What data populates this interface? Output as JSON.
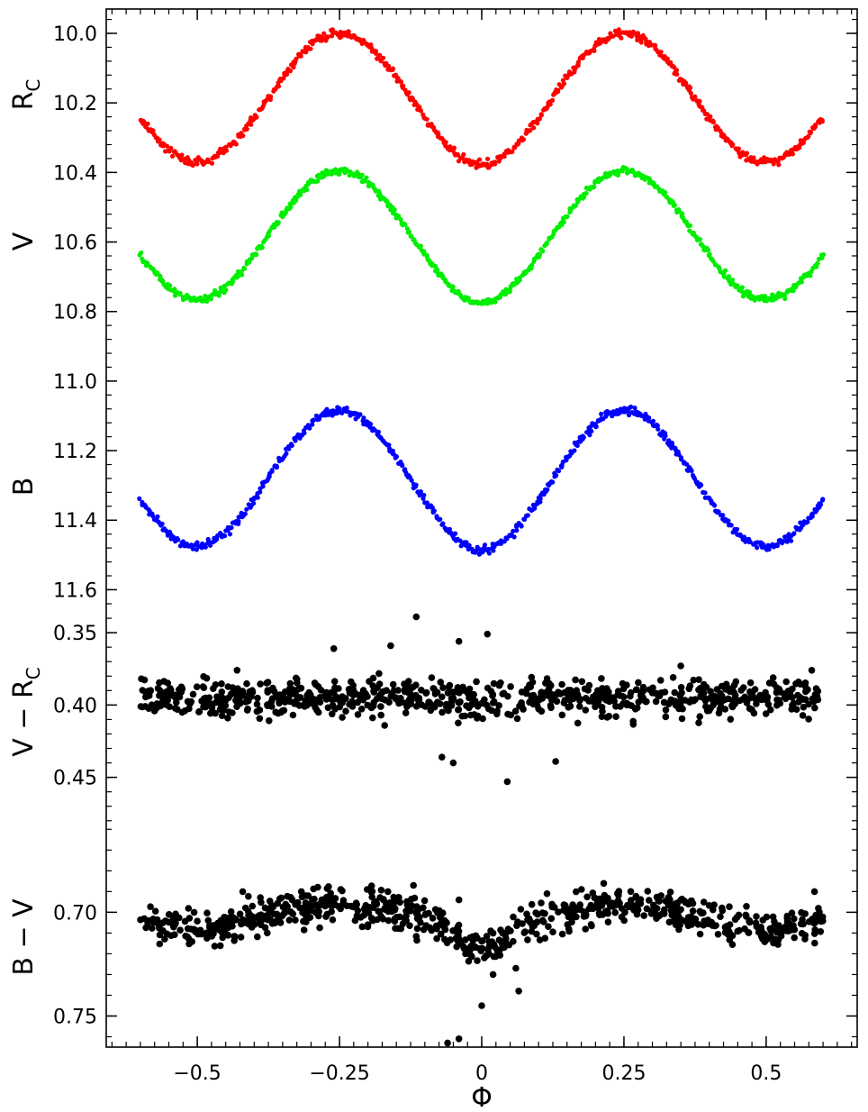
{
  "chart_data": {
    "type": "scatter",
    "x_axis": {
      "label": "Φ",
      "range": [
        -0.66,
        0.66
      ],
      "ticks": [
        -0.5,
        -0.25,
        0,
        0.25,
        0.5
      ],
      "tick_labels": [
        "−0.5",
        "−0.25",
        "0",
        "0.25",
        "0.5"
      ]
    },
    "panels": [
      {
        "id": "mag",
        "y_range": [
          9.93,
          11.63
        ],
        "y_inverted": true,
        "ticks": [
          10.0,
          10.2,
          10.4,
          10.6,
          10.8,
          11.0,
          11.2,
          11.4,
          11.6
        ],
        "tick_labels": [
          "10.0",
          "10.2",
          "10.4",
          "10.6",
          "10.8",
          "11.0",
          "11.2",
          "11.4",
          "11.6"
        ],
        "series": [
          {
            "name": "R_C",
            "label_main": "R",
            "label_sub": "C",
            "color": "#ff0000",
            "min_mag": 10.0,
            "max_mag": 10.37,
            "min_phase0": 10.41,
            "scatter": 0.012
          },
          {
            "name": "V",
            "label_main": "V",
            "label_sub": "",
            "color": "#00ee00",
            "min_mag": 10.395,
            "max_mag": 10.765,
            "min_phase0": 10.815,
            "scatter": 0.01
          },
          {
            "name": "B",
            "label_main": "B",
            "label_sub": "",
            "color": "#0000ff",
            "min_mag": 11.085,
            "max_mag": 11.475,
            "min_phase0": 11.535,
            "scatter": 0.012
          }
        ]
      },
      {
        "id": "vr",
        "label_main": "V − R",
        "label_sub": "C",
        "y_range": [
          0.3275,
          0.4845
        ],
        "y_inverted": true,
        "ticks": [
          0.35,
          0.4,
          0.45
        ],
        "tick_labels": [
          "0.35",
          "0.40",
          "0.45"
        ],
        "mean": 0.395,
        "scatter": 0.0065,
        "color": "#000000",
        "outliers": [
          [
            -0.115,
            0.339
          ],
          [
            0.01,
            0.351
          ],
          [
            -0.04,
            0.356
          ],
          [
            -0.16,
            0.359
          ],
          [
            -0.26,
            0.361
          ],
          [
            -0.43,
            0.376
          ],
          [
            0.35,
            0.373
          ],
          [
            -0.07,
            0.436
          ],
          [
            -0.05,
            0.44
          ],
          [
            0.13,
            0.439
          ],
          [
            0.045,
            0.453
          ],
          [
            0.58,
            0.376
          ]
        ]
      },
      {
        "id": "bv",
        "label_main": "B − V",
        "label_sub": "",
        "y_range": [
          0.659,
          0.765
        ],
        "y_inverted": true,
        "ticks": [
          0.7,
          0.75
        ],
        "tick_labels": [
          "0.70",
          "0.75"
        ],
        "mean": 0.702,
        "scatter": 0.0045,
        "color": "#000000",
        "outliers": [
          [
            -0.12,
            0.687
          ],
          [
            -0.165,
            0.69
          ],
          [
            -0.42,
            0.69
          ],
          [
            -0.04,
            0.694
          ],
          [
            0.585,
            0.69
          ],
          [
            0.065,
            0.738
          ],
          [
            0.0,
            0.745
          ],
          [
            -0.06,
            0.763
          ],
          [
            -0.04,
            0.761
          ],
          [
            0.06,
            0.727
          ],
          [
            0.02,
            0.73
          ]
        ]
      }
    ]
  }
}
